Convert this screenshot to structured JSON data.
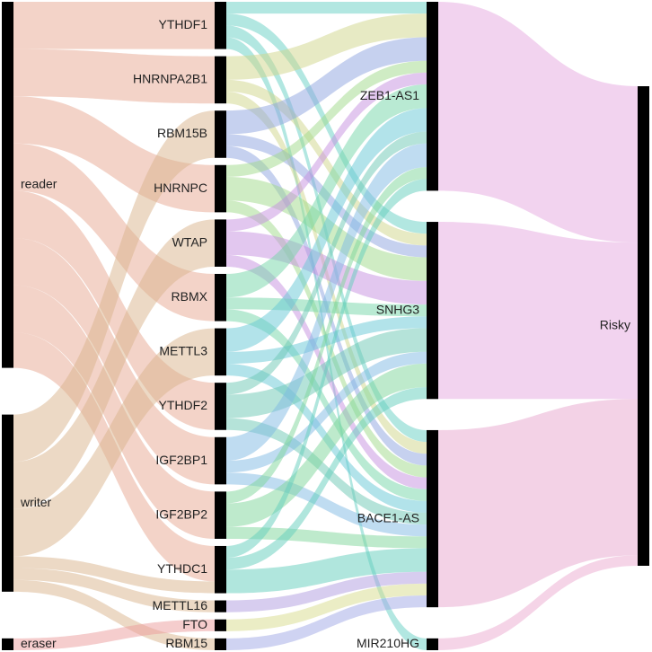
{
  "diagram": {
    "type": "sankey",
    "columns": [
      {
        "nodes": [
          {
            "id": "reader",
            "label": "reader"
          },
          {
            "id": "writer",
            "label": "writer"
          },
          {
            "id": "eraser",
            "label": "eraser"
          }
        ]
      },
      {
        "nodes": [
          {
            "id": "YTHDF1",
            "label": "YTHDF1"
          },
          {
            "id": "HNRNPA2B1",
            "label": "HNRNPA2B1"
          },
          {
            "id": "RBM15B",
            "label": "RBM15B"
          },
          {
            "id": "HNRNPC",
            "label": "HNRNPC"
          },
          {
            "id": "WTAP",
            "label": "WTAP"
          },
          {
            "id": "RBMX",
            "label": "RBMX"
          },
          {
            "id": "METTL3",
            "label": "METTL3"
          },
          {
            "id": "YTHDF2",
            "label": "YTHDF2"
          },
          {
            "id": "IGF2BP1",
            "label": "IGF2BP1"
          },
          {
            "id": "IGF2BP2",
            "label": "IGF2BP2"
          },
          {
            "id": "YTHDC1",
            "label": "YTHDC1"
          },
          {
            "id": "METTL16",
            "label": "METTL16"
          },
          {
            "id": "FTO",
            "label": "FTO"
          },
          {
            "id": "RBM15",
            "label": "RBM15"
          }
        ]
      },
      {
        "nodes": [
          {
            "id": "ZEB1-AS1",
            "label": "ZEB1-AS1"
          },
          {
            "id": "SNHG3",
            "label": "SNHG3"
          },
          {
            "id": "BACE1-AS",
            "label": "BACE1-AS"
          },
          {
            "id": "MIR210HG",
            "label": "MIR210HG"
          }
        ]
      },
      {
        "nodes": [
          {
            "id": "Risky",
            "label": "Risky"
          }
        ]
      }
    ],
    "links": [
      {
        "source": "reader",
        "target": "YTHDF1",
        "value": 4,
        "color": "#e8a791"
      },
      {
        "source": "reader",
        "target": "HNRNPA2B1",
        "value": 4,
        "color": "#e8a791"
      },
      {
        "source": "reader",
        "target": "HNRNPC",
        "value": 4,
        "color": "#e8a791"
      },
      {
        "source": "reader",
        "target": "RBMX",
        "value": 4,
        "color": "#e8a791"
      },
      {
        "source": "reader",
        "target": "YTHDF2",
        "value": 4,
        "color": "#e8a791"
      },
      {
        "source": "reader",
        "target": "IGF2BP1",
        "value": 4,
        "color": "#e8a791"
      },
      {
        "source": "reader",
        "target": "IGF2BP2",
        "value": 4,
        "color": "#e8a791"
      },
      {
        "source": "reader",
        "target": "YTHDC1",
        "value": 3,
        "color": "#e8a791"
      },
      {
        "source": "writer",
        "target": "RBM15B",
        "value": 4,
        "color": "#d9b38c"
      },
      {
        "source": "writer",
        "target": "WTAP",
        "value": 4,
        "color": "#d9b38c"
      },
      {
        "source": "writer",
        "target": "METTL3",
        "value": 4,
        "color": "#d9b38c"
      },
      {
        "source": "writer",
        "target": "YTHDC1",
        "value": 1,
        "color": "#d9b38c"
      },
      {
        "source": "writer",
        "target": "METTL16",
        "value": 1,
        "color": "#d9b38c"
      },
      {
        "source": "writer",
        "target": "RBM15",
        "value": 1,
        "color": "#d9b38c"
      },
      {
        "source": "eraser",
        "target": "FTO",
        "value": 1,
        "color": "#ec9b9b"
      },
      {
        "source": "YTHDF1",
        "target": "ZEB1-AS1",
        "value": 1,
        "color": "#66d0c4"
      },
      {
        "source": "YTHDF1",
        "target": "SNHG3",
        "value": 1,
        "color": "#66d0c4"
      },
      {
        "source": "YTHDF1",
        "target": "BACE1-AS",
        "value": 1,
        "color": "#66d0c4"
      },
      {
        "source": "YTHDF1",
        "target": "MIR210HG",
        "value": 1,
        "color": "#66d0c4"
      },
      {
        "source": "HNRNPA2B1",
        "target": "ZEB1-AS1",
        "value": 2,
        "color": "#cfd68a"
      },
      {
        "source": "HNRNPA2B1",
        "target": "SNHG3",
        "value": 1,
        "color": "#cfd68a"
      },
      {
        "source": "HNRNPA2B1",
        "target": "BACE1-AS",
        "value": 1,
        "color": "#cfd68a"
      },
      {
        "source": "RBM15B",
        "target": "ZEB1-AS1",
        "value": 2,
        "color": "#8ea3df"
      },
      {
        "source": "RBM15B",
        "target": "SNHG3",
        "value": 1,
        "color": "#8ea3df"
      },
      {
        "source": "RBM15B",
        "target": "BACE1-AS",
        "value": 1,
        "color": "#8ea3df"
      },
      {
        "source": "HNRNPC",
        "target": "ZEB1-AS1",
        "value": 1,
        "color": "#9fd98a"
      },
      {
        "source": "HNRNPC",
        "target": "SNHG3",
        "value": 2,
        "color": "#9fd98a"
      },
      {
        "source": "HNRNPC",
        "target": "BACE1-AS",
        "value": 1,
        "color": "#9fd98a"
      },
      {
        "source": "WTAP",
        "target": "ZEB1-AS1",
        "value": 1,
        "color": "#c58fe0"
      },
      {
        "source": "WTAP",
        "target": "SNHG3",
        "value": 2,
        "color": "#c58fe0"
      },
      {
        "source": "WTAP",
        "target": "BACE1-AS",
        "value": 1,
        "color": "#c58fe0"
      },
      {
        "source": "RBMX",
        "target": "ZEB1-AS1",
        "value": 2,
        "color": "#74d6a8"
      },
      {
        "source": "RBMX",
        "target": "SNHG3",
        "value": 1,
        "color": "#74d6a8"
      },
      {
        "source": "RBMX",
        "target": "BACE1-AS",
        "value": 1,
        "color": "#74d6a8"
      },
      {
        "source": "METTL3",
        "target": "ZEB1-AS1",
        "value": 2,
        "color": "#66c8d6"
      },
      {
        "source": "METTL3",
        "target": "SNHG3",
        "value": 1,
        "color": "#66c8d6"
      },
      {
        "source": "METTL3",
        "target": "BACE1-AS",
        "value": 1,
        "color": "#66c8d6"
      },
      {
        "source": "YTHDF2",
        "target": "ZEB1-AS1",
        "value": 1,
        "color": "#6cc8b4"
      },
      {
        "source": "YTHDF2",
        "target": "SNHG3",
        "value": 2,
        "color": "#6cc8b4"
      },
      {
        "source": "YTHDF2",
        "target": "BACE1-AS",
        "value": 1,
        "color": "#6cc8b4"
      },
      {
        "source": "IGF2BP1",
        "target": "ZEB1-AS1",
        "value": 2,
        "color": "#7fb9e3"
      },
      {
        "source": "IGF2BP1",
        "target": "SNHG3",
        "value": 1,
        "color": "#7fb9e3"
      },
      {
        "source": "IGF2BP1",
        "target": "BACE1-AS",
        "value": 1,
        "color": "#7fb9e3"
      },
      {
        "source": "IGF2BP2",
        "target": "ZEB1-AS1",
        "value": 1,
        "color": "#7ed69a"
      },
      {
        "source": "IGF2BP2",
        "target": "SNHG3",
        "value": 2,
        "color": "#7ed69a"
      },
      {
        "source": "IGF2BP2",
        "target": "BACE1-AS",
        "value": 1,
        "color": "#7ed69a"
      },
      {
        "source": "YTHDC1",
        "target": "ZEB1-AS1",
        "value": 1,
        "color": "#62cdbb"
      },
      {
        "source": "YTHDC1",
        "target": "SNHG3",
        "value": 1,
        "color": "#62cdbb"
      },
      {
        "source": "YTHDC1",
        "target": "BACE1-AS",
        "value": 2,
        "color": "#62cdbb"
      },
      {
        "source": "METTL16",
        "target": "BACE1-AS",
        "value": 1,
        "color": "#b09ce0"
      },
      {
        "source": "FTO",
        "target": "BACE1-AS",
        "value": 1,
        "color": "#d8dc8c"
      },
      {
        "source": "RBM15",
        "target": "BACE1-AS",
        "value": 1,
        "color": "#9fa8e6"
      },
      {
        "source": "ZEB1-AS1",
        "target": "Risky",
        "value": 15,
        "color": "#e6a8df"
      },
      {
        "source": "SNHG3",
        "target": "Risky",
        "value": 15,
        "color": "#e6a8df"
      },
      {
        "source": "BACE1-AS",
        "target": "Risky",
        "value": 15,
        "color": "#e8a6cd"
      },
      {
        "source": "MIR210HG",
        "target": "Risky",
        "value": 1,
        "color": "#ecaad0"
      }
    ]
  }
}
